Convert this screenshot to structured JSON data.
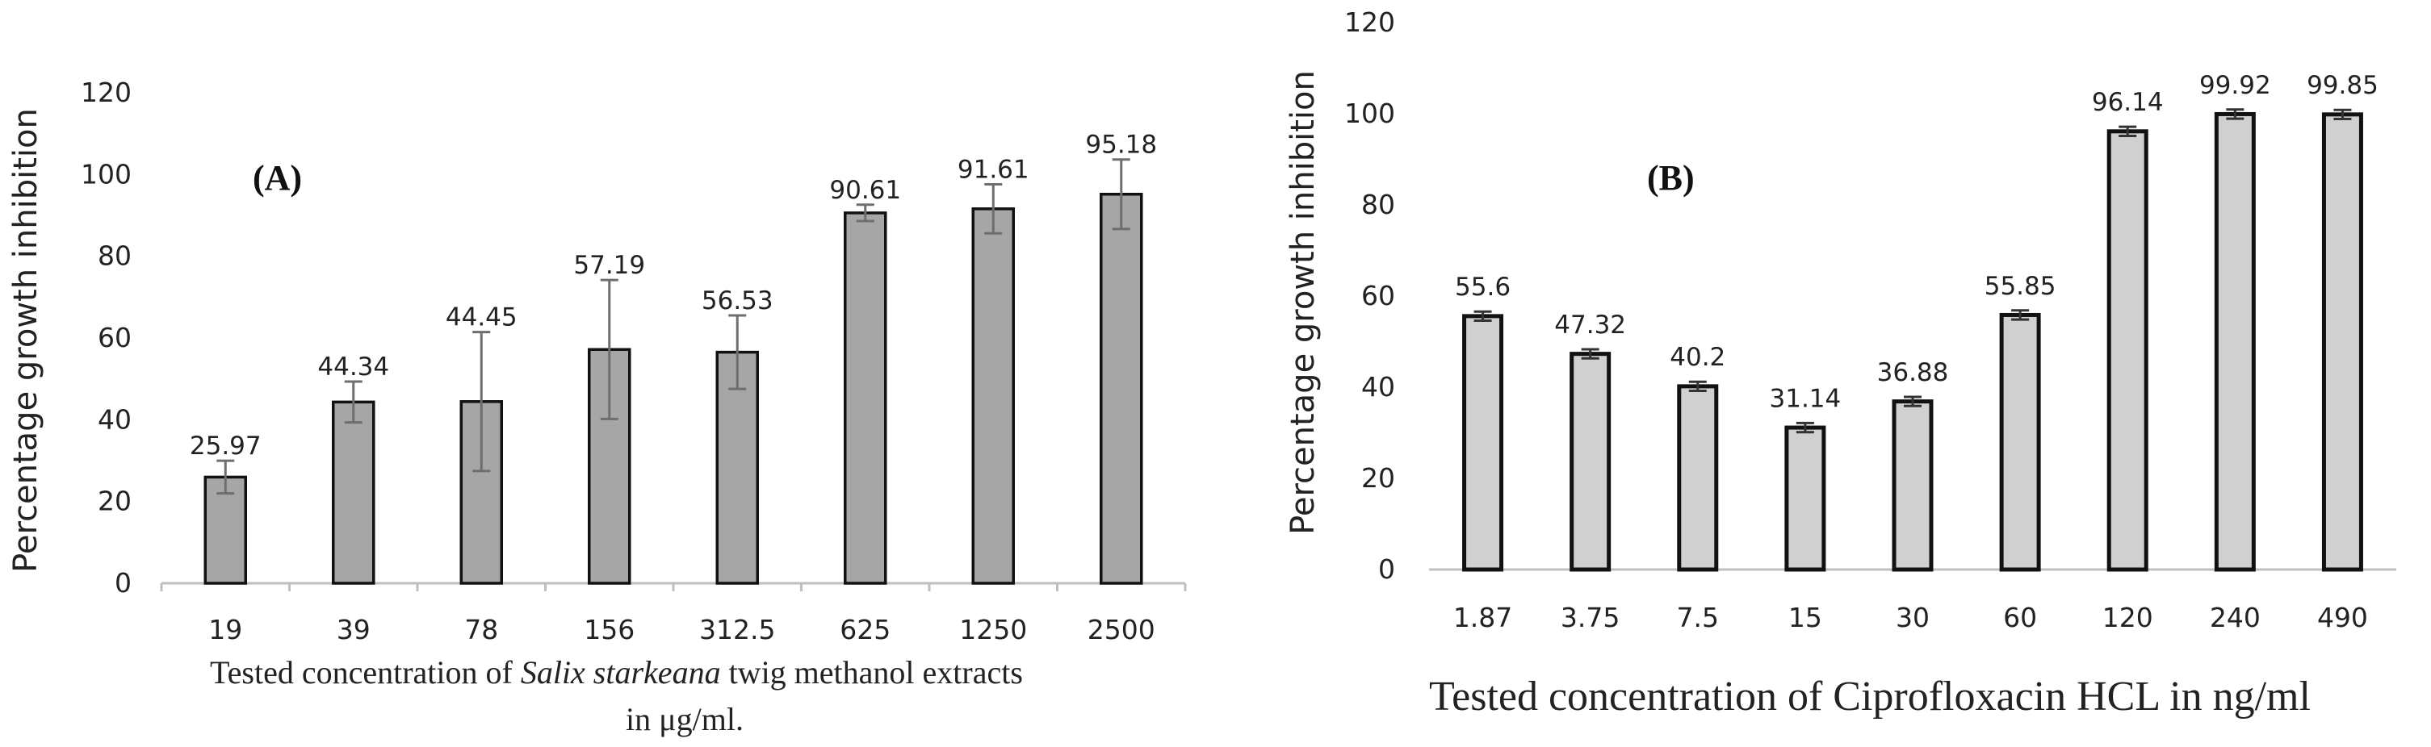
{
  "chart_data": [
    {
      "type": "bar",
      "panel_label": "(A)",
      "title": "",
      "categories": [
        "19",
        "39",
        "78",
        "156",
        "312.5",
        "625",
        "1250",
        "2500"
      ],
      "values": [
        25.97,
        44.34,
        44.45,
        57.19,
        56.53,
        90.61,
        91.61,
        95.18
      ],
      "value_labels": [
        "25.97",
        "44.34",
        "44.45",
        "57.19",
        "56.53",
        "90.61",
        "91.61",
        "95.18"
      ],
      "error": [
        4,
        5,
        17,
        17,
        9,
        2,
        6,
        8.5
      ],
      "ylabel": "Percentage growth inhibition",
      "xlabel_line1_prefix": "Tested concentration of ",
      "xlabel_line1_italic": "Salix starkeana",
      "xlabel_line1_suffix": " twig methanol extracts",
      "xlabel_line2": "in μg/ml.",
      "ylim": [
        0,
        120
      ],
      "yticks": [
        "0",
        "20",
        "40",
        "60",
        "80",
        "100",
        "120"
      ],
      "bar_color": "#a6a6a6",
      "grid": false
    },
    {
      "type": "bar",
      "panel_label": "(B)",
      "title": "",
      "categories": [
        "1.87",
        "3.75",
        "7.5",
        "15",
        "30",
        "60",
        "120",
        "240",
        "490"
      ],
      "values": [
        55.6,
        47.32,
        40.2,
        31.14,
        36.88,
        55.85,
        96.14,
        99.92,
        99.85
      ],
      "value_labels": [
        "55.6",
        "47.32",
        "40.2",
        "31.14",
        "36.88",
        "55.85",
        "96.14",
        "99.92",
        "99.85"
      ],
      "error": [
        1,
        1,
        1,
        1,
        1,
        1,
        1,
        1,
        1
      ],
      "ylabel": "Percentage growth inhibition",
      "xlabel": "Tested concentration of Ciprofloxacin HCL in ng/ml",
      "ylim": [
        0,
        120
      ],
      "yticks": [
        "0",
        "20",
        "40",
        "60",
        "80",
        "100",
        "120"
      ],
      "bar_color": "#d0d0d0",
      "grid": false
    }
  ]
}
